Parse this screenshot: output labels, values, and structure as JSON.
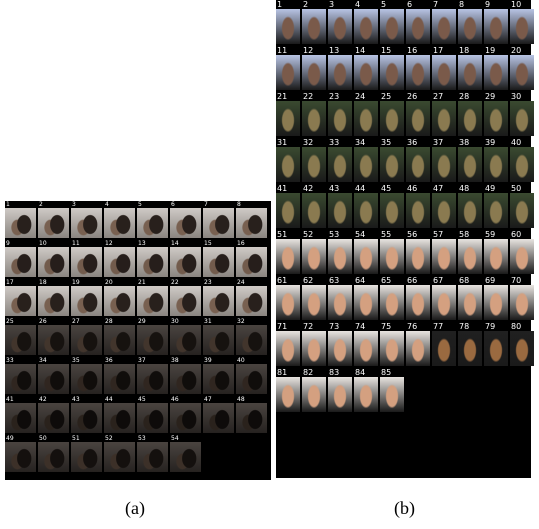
{
  "figure": {
    "panels": [
      {
        "id": "a",
        "caption": "(a)",
        "frame_count": 54,
        "columns": 8,
        "frame_labels": [
          "1",
          "2",
          "3",
          "4",
          "5",
          "6",
          "7",
          "8",
          "9",
          "10",
          "11",
          "12",
          "13",
          "14",
          "15",
          "16",
          "17",
          "18",
          "19",
          "20",
          "21",
          "22",
          "23",
          "24",
          "25",
          "26",
          "27",
          "28",
          "29",
          "30",
          "31",
          "32",
          "33",
          "34",
          "35",
          "36",
          "37",
          "38",
          "39",
          "40",
          "41",
          "42",
          "43",
          "44",
          "45",
          "46",
          "47",
          "48",
          "49",
          "50",
          "51",
          "52",
          "53",
          "54"
        ],
        "colors": {
          "background": "#000000",
          "skin": "#6b5546",
          "hair": "#1a1410",
          "backdrop_light": "#d8d4d0"
        }
      },
      {
        "id": "b",
        "caption": "(b)",
        "frame_count": 85,
        "columns": 10,
        "frame_labels": [
          "1",
          "2",
          "3",
          "4",
          "5",
          "6",
          "7",
          "8",
          "9",
          "10",
          "11",
          "12",
          "13",
          "14",
          "15",
          "16",
          "17",
          "18",
          "19",
          "20",
          "21",
          "22",
          "23",
          "24",
          "25",
          "26",
          "27",
          "28",
          "29",
          "30",
          "31",
          "32",
          "33",
          "34",
          "35",
          "36",
          "37",
          "38",
          "39",
          "40",
          "41",
          "42",
          "43",
          "44",
          "45",
          "46",
          "47",
          "48",
          "49",
          "50",
          "51",
          "52",
          "53",
          "54",
          "55",
          "56",
          "57",
          "58",
          "59",
          "60",
          "61",
          "62",
          "63",
          "64",
          "65",
          "66",
          "67",
          "68",
          "69",
          "70",
          "71",
          "72",
          "73",
          "74",
          "75",
          "76",
          "77",
          "78",
          "79",
          "80",
          "81",
          "82",
          "83",
          "84",
          "85"
        ],
        "colors": {
          "background": "#000000",
          "skin": "#b98a6a",
          "skin_dark": "#6e5a3e",
          "backdrop": "#a8b8d8"
        }
      }
    ]
  }
}
